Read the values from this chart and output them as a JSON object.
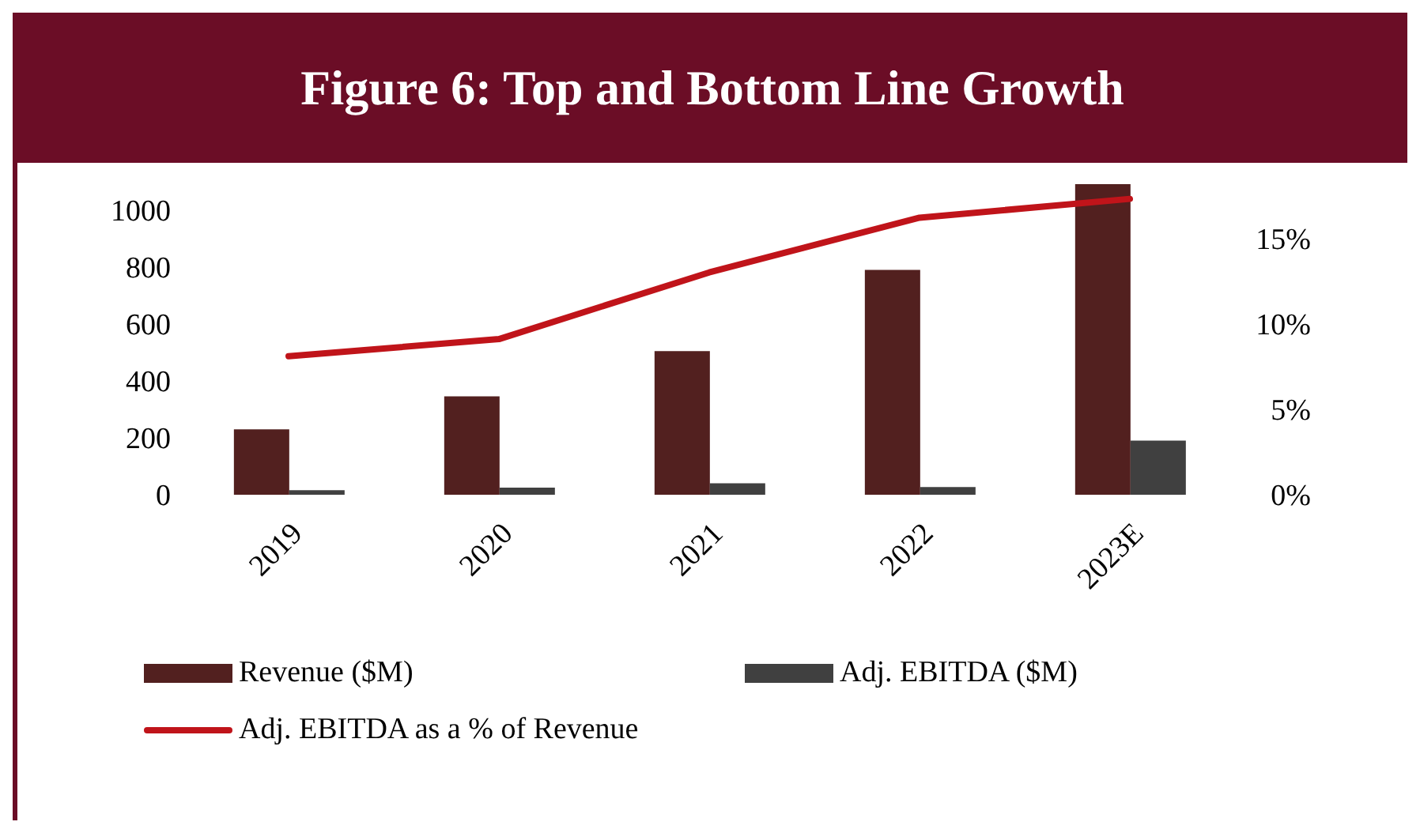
{
  "chart_data": {
    "type": "bar",
    "title": "Figure 6: Top and Bottom Line Growth",
    "categories": [
      "2019",
      "2020",
      "2021",
      "2022",
      "2023E"
    ],
    "series": [
      {
        "name": "Revenue ($M)",
        "color": "#52201f",
        "values": [
          230,
          346,
          505,
          790,
          1092
        ]
      },
      {
        "name": "Adj. EBITDA ($M)",
        "color": "#404040",
        "values": [
          16,
          25,
          40,
          27,
          190
        ]
      },
      {
        "name": "Adj. EBITDA as a % of Revenue",
        "type": "line",
        "axis": "y2",
        "color": "#c0141a",
        "values": [
          8.1,
          9.1,
          13.0,
          16.2,
          17.3
        ]
      }
    ],
    "ylim": [
      0,
      1100
    ],
    "yticks": [
      0,
      200,
      400,
      600,
      800,
      1000
    ],
    "y2lim": [
      0,
      18.3
    ],
    "y2ticks": [
      {
        "value": 0,
        "label": "0%"
      },
      {
        "value": 5,
        "label": "5%"
      },
      {
        "value": 10,
        "label": "10%"
      },
      {
        "value": 15,
        "label": "15%"
      }
    ],
    "grid": false,
    "legend": "bottom",
    "marker": "none",
    "line_style": "solid"
  }
}
